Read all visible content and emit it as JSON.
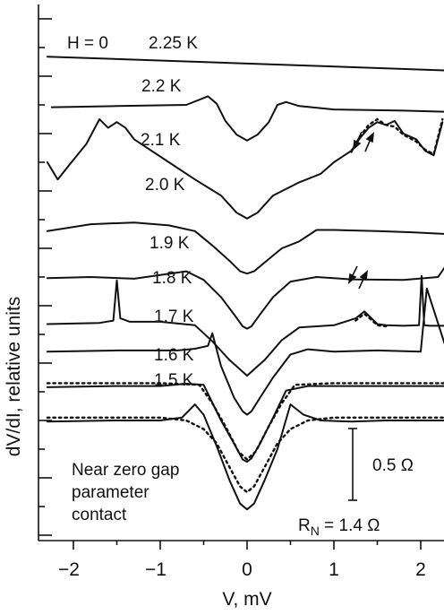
{
  "chart_data": {
    "type": "line",
    "xlabel": "V, mV",
    "ylabel": "dV/dI, relative units",
    "xlim": [
      -2.3,
      2.3
    ],
    "x_ticks": [
      "−2",
      "−1",
      "0",
      "1",
      "2"
    ],
    "field_label": "H = 0",
    "annotation": "Near zero gap\nparameter\ncontact",
    "scale_bar_label": "0.5 Ω",
    "rn_label_main": "R",
    "rn_label_sub": "N",
    "rn_label_value": " = 1.4 Ω",
    "series": [
      {
        "name": "2.25 K",
        "style": "solid",
        "x": [
          -2.3,
          2.3
        ],
        "y": [
          8.34,
          8.1
        ]
      },
      {
        "name": "2.2 K",
        "style": "solid",
        "x": [
          -2.25,
          -1.5,
          -0.7,
          -0.45,
          -0.35,
          -0.25,
          -0.12,
          0.0,
          0.12,
          0.25,
          0.35,
          0.45,
          0.6,
          1.0,
          1.8,
          2.3
        ],
        "y": [
          7.46,
          7.48,
          7.5,
          7.65,
          7.52,
          7.22,
          6.98,
          6.88,
          6.98,
          7.2,
          7.5,
          7.55,
          7.48,
          7.42,
          7.4,
          7.38
        ]
      },
      {
        "name": "2.1 K",
        "style": "solid",
        "x": [
          -2.3,
          -2.18,
          -2.05,
          -1.85,
          -1.7,
          -1.6,
          -1.5,
          -1.4,
          -1.3,
          -1.2,
          -0.9,
          -0.6,
          -0.3,
          -0.12,
          0.0,
          0.12,
          0.3,
          0.6,
          0.85,
          1.0,
          1.2,
          1.3,
          1.4,
          1.5,
          1.6,
          1.7,
          1.8,
          1.95,
          2.05,
          2.15,
          2.25
        ],
        "y": [
          6.5,
          6.2,
          6.45,
          6.82,
          7.25,
          7.1,
          7.2,
          7.1,
          6.9,
          6.8,
          6.5,
          6.2,
          5.92,
          5.62,
          5.52,
          5.62,
          5.92,
          6.15,
          6.3,
          6.5,
          6.7,
          6.92,
          7.1,
          7.2,
          7.15,
          7.22,
          7.0,
          6.9,
          6.7,
          6.62,
          7.2
        ]
      },
      {
        "name": "2.1 K fit",
        "style": "dotted",
        "x": [
          1.2,
          1.3,
          1.4,
          1.5,
          1.6,
          1.7,
          1.8,
          1.95,
          2.05,
          2.15,
          2.25
        ],
        "y": [
          6.68,
          6.95,
          7.15,
          7.25,
          7.15,
          7.12,
          6.98,
          6.86,
          6.72,
          6.64,
          7.25
        ]
      },
      {
        "name": "2.0 K",
        "style": "solid",
        "x": [
          -2.3,
          -1.8,
          -1.3,
          -0.9,
          -0.6,
          -0.4,
          -0.2,
          -0.08,
          0.0,
          0.08,
          0.2,
          0.4,
          0.6,
          0.8,
          1.0,
          1.5,
          1.9,
          2.3
        ],
        "y": [
          5.3,
          5.42,
          5.45,
          5.4,
          5.3,
          5.05,
          4.78,
          4.6,
          4.56,
          4.6,
          4.75,
          5.0,
          5.12,
          5.32,
          5.32,
          5.3,
          5.28,
          5.25
        ]
      },
      {
        "name": "1.9 K",
        "style": "solid",
        "x": [
          -2.3,
          -1.8,
          -1.3,
          -0.7,
          -0.5,
          -0.3,
          -0.15,
          -0.05,
          0.0,
          0.05,
          0.15,
          0.3,
          0.5,
          0.8,
          1.2,
          1.8,
          2.2,
          2.3
        ],
        "y": [
          4.48,
          4.5,
          4.47,
          4.6,
          4.45,
          4.15,
          3.85,
          3.64,
          3.6,
          3.64,
          3.85,
          4.15,
          4.42,
          4.5,
          4.46,
          4.45,
          4.5,
          4.72
        ]
      },
      {
        "name": "1.8 K",
        "style": "solid",
        "x": [
          -2.3,
          -1.7,
          -1.54,
          -1.5,
          -1.46,
          -1.35,
          -1.0,
          -0.6,
          -0.4,
          -0.2,
          -0.05,
          0.0,
          0.05,
          0.2,
          0.4,
          0.6,
          1.0,
          1.25,
          1.35,
          1.42,
          1.5,
          1.6,
          1.8,
          1.98,
          2.01,
          2.04,
          2.1,
          2.3
        ],
        "y": [
          3.68,
          3.7,
          3.74,
          4.44,
          3.78,
          3.72,
          3.72,
          3.66,
          3.38,
          3.05,
          2.85,
          2.78,
          2.85,
          3.05,
          3.4,
          3.62,
          3.66,
          3.78,
          3.9,
          3.8,
          3.68,
          3.66,
          3.65,
          3.66,
          4.52,
          3.66,
          3.65,
          3.65
        ]
      },
      {
        "name": "1.8 K fit",
        "style": "dotted",
        "x": [
          1.25,
          1.35,
          1.42,
          1.5,
          1.6
        ],
        "y": [
          3.74,
          3.86,
          3.77,
          3.66,
          3.64
        ]
      },
      {
        "name": "1.7 K",
        "style": "solid",
        "x": [
          -2.3,
          -1.5,
          -0.8,
          -0.6,
          -0.45,
          -0.4,
          -0.3,
          -0.15,
          -0.05,
          0.0,
          0.05,
          0.15,
          0.3,
          0.5,
          0.7,
          1.0,
          1.5,
          2.0,
          2.07,
          2.3
        ],
        "y": [
          3.2,
          3.22,
          3.22,
          3.25,
          3.3,
          3.52,
          2.95,
          2.4,
          2.16,
          2.1,
          2.16,
          2.4,
          2.75,
          3.15,
          3.24,
          3.2,
          3.22,
          3.2,
          4.3,
          3.22
        ]
      },
      {
        "name": "1.6 K",
        "style": "solid",
        "x": [
          -2.3,
          -1.5,
          -1.0,
          -0.7,
          -0.5,
          -0.3,
          -0.15,
          -0.05,
          0.0,
          0.05,
          0.15,
          0.3,
          0.45,
          0.7,
          1.0,
          1.5,
          2.3
        ],
        "y": [
          2.58,
          2.6,
          2.6,
          2.64,
          2.62,
          2.0,
          1.6,
          1.32,
          1.28,
          1.34,
          1.6,
          2.05,
          2.52,
          2.6,
          2.6,
          2.6,
          2.6
        ]
      },
      {
        "name": "1.6 K fit",
        "style": "dotted",
        "x": [
          -2.3,
          -1.0,
          -0.55,
          -0.4,
          -0.25,
          -0.1,
          0.0,
          0.1,
          0.25,
          0.4,
          0.55,
          1.0,
          2.3
        ],
        "y": [
          2.65,
          2.65,
          2.62,
          2.3,
          1.9,
          1.46,
          1.32,
          1.46,
          1.9,
          2.3,
          2.62,
          2.65,
          2.65
        ]
      },
      {
        "name": "1.5 K",
        "style": "solid",
        "x": [
          -2.3,
          -1.5,
          -1.0,
          -0.75,
          -0.6,
          -0.5,
          -0.35,
          -0.2,
          -0.08,
          0.0,
          0.08,
          0.2,
          0.35,
          0.5,
          0.65,
          0.85,
          1.2,
          1.6,
          2.3
        ],
        "y": [
          1.98,
          2.0,
          2.0,
          2.05,
          2.28,
          2.1,
          1.55,
          0.95,
          0.55,
          0.45,
          0.55,
          0.95,
          1.5,
          2.28,
          2.1,
          2.0,
          1.98,
          2.0,
          2.0
        ]
      },
      {
        "name": "1.5 K fit",
        "style": "dotted",
        "x": [
          -2.3,
          -1.0,
          -0.7,
          -0.5,
          -0.35,
          -0.2,
          -0.08,
          0.0,
          0.08,
          0.2,
          0.35,
          0.5,
          0.7,
          1.0,
          2.3
        ],
        "y": [
          2.05,
          2.05,
          2.0,
          1.85,
          1.6,
          1.18,
          0.85,
          0.75,
          0.85,
          1.18,
          1.6,
          1.85,
          2.0,
          2.05,
          2.05
        ]
      }
    ]
  }
}
